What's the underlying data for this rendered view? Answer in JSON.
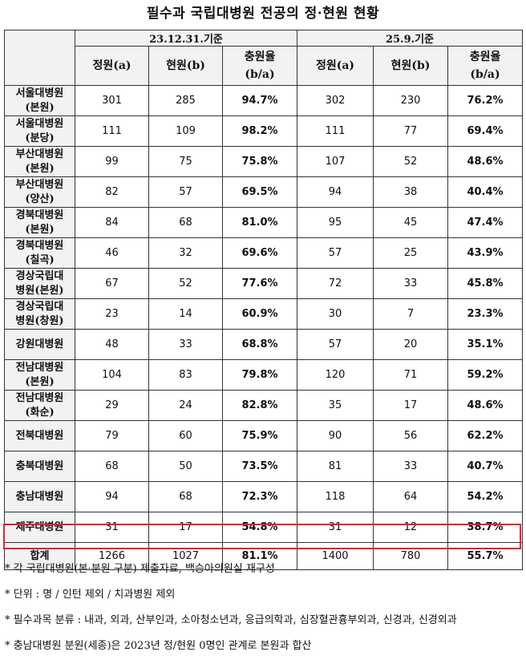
{
  "title": "필수과 국립대병원 전공의 정·현원 현황",
  "periods": [
    "23.12.31.기준",
    "25.9.기준"
  ],
  "subheaders": [
    "정원(a)",
    "현원(b)",
    "충원율",
    "(b/a)"
  ],
  "rows": [
    {
      "name": "서울대병원",
      "sub": "(본원)",
      "p1": [
        "301",
        "285",
        "94.7%"
      ],
      "p2": [
        "302",
        "230",
        "76.2%"
      ]
    },
    {
      "name": "서울대병원",
      "sub": "(분당)",
      "p1": [
        "111",
        "109",
        "98.2%"
      ],
      "p2": [
        "111",
        "77",
        "69.4%"
      ]
    },
    {
      "name": "부산대병원",
      "sub": "(본원)",
      "p1": [
        "99",
        "75",
        "75.8%"
      ],
      "p2": [
        "107",
        "52",
        "48.6%"
      ]
    },
    {
      "name": "부산대병원",
      "sub": "(양산)",
      "p1": [
        "82",
        "57",
        "69.5%"
      ],
      "p2": [
        "94",
        "38",
        "40.4%"
      ]
    },
    {
      "name": "경북대병원",
      "sub": "(본원)",
      "p1": [
        "84",
        "68",
        "81.0%"
      ],
      "p2": [
        "95",
        "45",
        "47.4%"
      ]
    },
    {
      "name": "경북대병원",
      "sub": "(칠곡)",
      "p1": [
        "46",
        "32",
        "69.6%"
      ],
      "p2": [
        "57",
        "25",
        "43.9%"
      ]
    },
    {
      "name": "경상국립대",
      "sub": "병원(본원)",
      "p1": [
        "67",
        "52",
        "77.6%"
      ],
      "p2": [
        "72",
        "33",
        "45.8%"
      ]
    },
    {
      "name": "경상국립대",
      "sub": "병원(창원)",
      "p1": [
        "23",
        "14",
        "60.9%"
      ],
      "p2": [
        "30",
        "7",
        "23.3%"
      ]
    },
    {
      "name": "강원대병원",
      "sub": "",
      "p1": [
        "48",
        "33",
        "68.8%"
      ],
      "p2": [
        "57",
        "20",
        "35.1%"
      ]
    },
    {
      "name": "전남대병원",
      "sub": "(본원)",
      "p1": [
        "104",
        "83",
        "79.8%"
      ],
      "p2": [
        "120",
        "71",
        "59.2%"
      ]
    },
    {
      "name": "전남대병원",
      "sub": "(화순)",
      "p1": [
        "29",
        "24",
        "82.8%"
      ],
      "p2": [
        "35",
        "17",
        "48.6%"
      ]
    },
    {
      "name": "전북대병원",
      "sub": "",
      "p1": [
        "79",
        "60",
        "75.9%"
      ],
      "p2": [
        "90",
        "56",
        "62.2%"
      ]
    },
    {
      "name": "충북대병원",
      "sub": "",
      "p1": [
        "68",
        "50",
        "73.5%"
      ],
      "p2": [
        "81",
        "33",
        "40.7%"
      ]
    },
    {
      "name": "충남대병원",
      "sub": "",
      "p1": [
        "94",
        "68",
        "72.3%"
      ],
      "p2": [
        "118",
        "64",
        "54.2%"
      ]
    },
    {
      "name": "제주대병원",
      "sub": "",
      "p1": [
        "31",
        "17",
        "54.8%"
      ],
      "p2": [
        "31",
        "12",
        "38.7%"
      ]
    }
  ],
  "total": {
    "name": "합계",
    "p1": [
      "1266",
      "1027",
      "81.1%"
    ],
    "p2": [
      "1400",
      "780",
      "55.7%"
    ]
  },
  "notes": [
    "* 각 국립대병원(본·분원 구분) 제출자료, 백승아의원실 재구성",
    "* 단위 : 명 / 인턴 제외 / 치과병원 제외",
    "* 필수과목 분류 : 내과, 외과, 산부인과, 소아청소년과, 응급의학과, 심장혈관흉부외과, 신경과, 신경외과",
    "* 충남대병원 분원(세종)은 2023년 정/현원 0명인 관계로 본원과 합산"
  ],
  "colors": {
    "header_bg": "#f2f2f2",
    "total_highlight": "#e0262b"
  }
}
